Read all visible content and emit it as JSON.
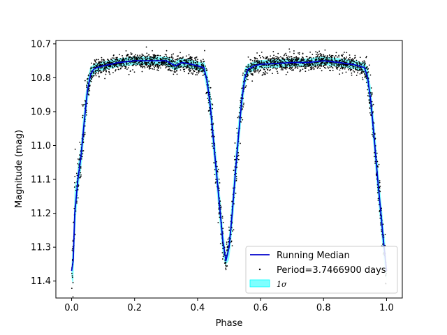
{
  "chart_data": {
    "type": "scatter",
    "title": "",
    "xlabel": "Phase",
    "ylabel": "Magnitude (mag)",
    "xlim": [
      -0.05,
      1.05
    ],
    "ylim": [
      11.45,
      10.69
    ],
    "y_inverted": true,
    "xticks": [
      {
        "value": 0.0,
        "label": "0.0"
      },
      {
        "value": 0.2,
        "label": "0.2"
      },
      {
        "value": 0.4,
        "label": "0.4"
      },
      {
        "value": 0.6,
        "label": "0.6"
      },
      {
        "value": 0.8,
        "label": "0.8"
      },
      {
        "value": 1.0,
        "label": "1.0"
      }
    ],
    "yticks": [
      {
        "value": 10.7,
        "label": "10.7"
      },
      {
        "value": 10.8,
        "label": "10.8"
      },
      {
        "value": 10.9,
        "label": "10.9"
      },
      {
        "value": 11.0,
        "label": "11.0"
      },
      {
        "value": 11.1,
        "label": "11.1"
      },
      {
        "value": 11.2,
        "label": "11.2"
      },
      {
        "value": 11.3,
        "label": "11.3"
      },
      {
        "value": 11.4,
        "label": "11.4"
      }
    ],
    "grid": false,
    "legend_position": "lower-right",
    "series": [
      {
        "name": "Running Median",
        "kind": "line",
        "color": "#0000cc",
        "x": [
          0.0,
          0.005,
          0.01,
          0.015,
          0.02,
          0.03,
          0.04,
          0.05,
          0.06,
          0.07,
          0.08,
          0.1,
          0.15,
          0.2,
          0.25,
          0.3,
          0.33,
          0.35,
          0.38,
          0.4,
          0.42,
          0.43,
          0.44,
          0.45,
          0.46,
          0.47,
          0.48,
          0.49,
          0.5,
          0.51,
          0.52,
          0.53,
          0.54,
          0.55,
          0.56,
          0.58,
          0.6,
          0.65,
          0.7,
          0.75,
          0.8,
          0.85,
          0.9,
          0.93,
          0.94,
          0.95,
          0.96,
          0.97,
          0.98,
          0.99,
          1.0
        ],
        "y": [
          11.37,
          11.34,
          11.2,
          11.15,
          11.1,
          11.03,
          10.93,
          10.84,
          10.79,
          10.775,
          10.77,
          10.765,
          10.755,
          10.75,
          10.75,
          10.75,
          10.765,
          10.755,
          10.76,
          10.765,
          10.77,
          10.81,
          10.88,
          10.98,
          11.08,
          11.18,
          11.28,
          11.34,
          11.3,
          11.2,
          11.08,
          10.97,
          10.87,
          10.8,
          10.775,
          10.765,
          10.76,
          10.758,
          10.755,
          10.755,
          10.75,
          10.755,
          10.762,
          10.77,
          10.8,
          10.87,
          10.97,
          11.08,
          11.18,
          11.28,
          11.37
        ]
      },
      {
        "name": "Period=3.7466900 days",
        "kind": "points",
        "color": "#000000",
        "scatter_sigma": 0.012,
        "n_points": 2600
      },
      {
        "name": "1σ",
        "kind": "band",
        "color": "#00ffff",
        "half_width": 0.012
      }
    ]
  }
}
